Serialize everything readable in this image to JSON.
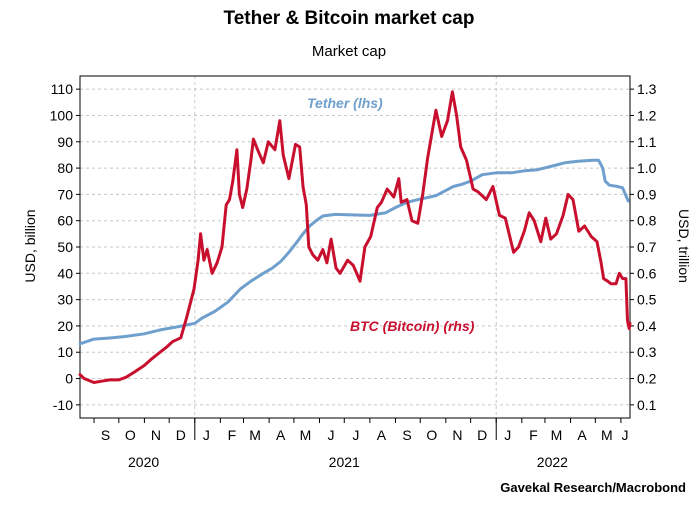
{
  "title": "Tether & Bitcoin market cap",
  "subtitle": "Market cap",
  "source": "Gavekal Research/Macrobond",
  "chart_data": {
    "type": "line",
    "title": "Tether & Bitcoin market cap",
    "subtitle": "Market cap",
    "ylabel_left": "USD, billion",
    "ylabel_right": "USD, trillion",
    "ylim_left": [
      -15,
      115
    ],
    "ylim_right": [
      0.05,
      1.35
    ],
    "yticks_left": [
      "-10",
      "0",
      "10",
      "20",
      "30",
      "40",
      "50",
      "60",
      "70",
      "80",
      "90",
      "100",
      "110"
    ],
    "yticks_right": [
      "0.1",
      "0.2",
      "0.3",
      "0.4",
      "0.5",
      "0.6",
      "0.7",
      "0.8",
      "0.9",
      "1.0",
      "1.1",
      "1.2",
      "1.3"
    ],
    "xlim": [
      "2020-08-15",
      "2022-06-12"
    ],
    "month_labels": [
      "S",
      "O",
      "N",
      "D",
      "J",
      "F",
      "M",
      "A",
      "M",
      "J",
      "J",
      "A",
      "S",
      "O",
      "N",
      "D",
      "J",
      "F",
      "M",
      "A",
      "M",
      "J"
    ],
    "month_dates": [
      "2020-09-15",
      "2020-10-15",
      "2020-11-15",
      "2020-12-15",
      "2021-01-15",
      "2021-02-15",
      "2021-03-15",
      "2021-04-15",
      "2021-05-15",
      "2021-06-15",
      "2021-07-15",
      "2021-08-15",
      "2021-09-15",
      "2021-10-15",
      "2021-11-15",
      "2021-12-15",
      "2022-01-15",
      "2022-02-15",
      "2022-03-15",
      "2022-04-15",
      "2022-05-15",
      "2022-06-06"
    ],
    "year_labels": [
      {
        "label": "2020",
        "date": "2020-10-31"
      },
      {
        "label": "2021",
        "date": "2021-07-01"
      },
      {
        "label": "2022",
        "date": "2022-03-10"
      }
    ],
    "year_dividers": [
      "2021-01-01",
      "2022-01-01"
    ],
    "grid": true,
    "series": [
      {
        "name": "Tether (lhs)",
        "axis": "left",
        "color": "#6f9fcd",
        "points": [
          [
            "2020-08-15",
            13.2
          ],
          [
            "2020-09-01",
            15.0
          ],
          [
            "2020-09-20",
            15.4
          ],
          [
            "2020-10-10",
            16.0
          ],
          [
            "2020-11-01",
            17.0
          ],
          [
            "2020-11-20",
            18.5
          ],
          [
            "2020-12-10",
            19.6
          ],
          [
            "2021-01-01",
            21.0
          ],
          [
            "2021-01-10",
            23.0
          ],
          [
            "2021-01-25",
            25.5
          ],
          [
            "2021-02-10",
            29.0
          ],
          [
            "2021-02-25",
            34.0
          ],
          [
            "2021-03-10",
            37.0
          ],
          [
            "2021-03-25",
            40.0
          ],
          [
            "2021-04-05",
            42.0
          ],
          [
            "2021-04-15",
            44.5
          ],
          [
            "2021-04-25",
            48.0
          ],
          [
            "2021-05-05",
            52.0
          ],
          [
            "2021-05-12",
            55.0
          ],
          [
            "2021-05-20",
            58.0
          ],
          [
            "2021-05-28",
            60.0
          ],
          [
            "2021-06-05",
            61.8
          ],
          [
            "2021-06-20",
            62.4
          ],
          [
            "2021-07-10",
            62.2
          ],
          [
            "2021-08-01",
            62.0
          ],
          [
            "2021-08-20",
            63.0
          ],
          [
            "2021-09-01",
            65.0
          ],
          [
            "2021-09-15",
            67.0
          ],
          [
            "2021-10-01",
            68.2
          ],
          [
            "2021-10-20",
            69.5
          ],
          [
            "2021-11-01",
            71.5
          ],
          [
            "2021-11-10",
            73.0
          ],
          [
            "2021-11-20",
            73.8
          ],
          [
            "2021-12-01",
            75.0
          ],
          [
            "2021-12-15",
            77.5
          ],
          [
            "2022-01-01",
            78.2
          ],
          [
            "2022-01-20",
            78.2
          ],
          [
            "2022-02-05",
            79.0
          ],
          [
            "2022-02-20",
            79.4
          ],
          [
            "2022-03-10",
            80.8
          ],
          [
            "2022-03-25",
            82.0
          ],
          [
            "2022-04-10",
            82.6
          ],
          [
            "2022-04-28",
            83.0
          ],
          [
            "2022-05-05",
            83.0
          ],
          [
            "2022-05-10",
            80.0
          ],
          [
            "2022-05-13",
            75.0
          ],
          [
            "2022-05-18",
            73.5
          ],
          [
            "2022-05-28",
            73.0
          ],
          [
            "2022-06-03",
            72.5
          ],
          [
            "2022-06-07",
            69.5
          ],
          [
            "2022-06-10",
            67.5
          ]
        ]
      },
      {
        "name": "BTC (Bitcoin) (rhs)",
        "axis": "right",
        "color": "#c8102e",
        "points": [
          [
            "2020-08-15",
            0.215
          ],
          [
            "2020-08-20",
            0.2
          ],
          [
            "2020-09-01",
            0.185
          ],
          [
            "2020-09-10",
            0.19
          ],
          [
            "2020-09-20",
            0.195
          ],
          [
            "2020-10-01",
            0.195
          ],
          [
            "2020-10-10",
            0.205
          ],
          [
            "2020-10-20",
            0.225
          ],
          [
            "2020-11-01",
            0.25
          ],
          [
            "2020-11-10",
            0.275
          ],
          [
            "2020-11-20",
            0.3
          ],
          [
            "2020-11-28",
            0.32
          ],
          [
            "2020-12-05",
            0.34
          ],
          [
            "2020-12-15",
            0.355
          ],
          [
            "2020-12-22",
            0.43
          ],
          [
            "2020-12-31",
            0.54
          ],
          [
            "2021-01-05",
            0.65
          ],
          [
            "2021-01-08",
            0.75
          ],
          [
            "2021-01-12",
            0.65
          ],
          [
            "2021-01-16",
            0.69
          ],
          [
            "2021-01-22",
            0.6
          ],
          [
            "2021-01-28",
            0.64
          ],
          [
            "2021-02-03",
            0.7
          ],
          [
            "2021-02-08",
            0.86
          ],
          [
            "2021-02-12",
            0.88
          ],
          [
            "2021-02-16",
            0.95
          ],
          [
            "2021-02-21",
            1.07
          ],
          [
            "2021-02-24",
            0.9
          ],
          [
            "2021-02-28",
            0.85
          ],
          [
            "2021-03-05",
            0.92
          ],
          [
            "2021-03-10",
            1.03
          ],
          [
            "2021-03-13",
            1.11
          ],
          [
            "2021-03-18",
            1.07
          ],
          [
            "2021-03-25",
            1.02
          ],
          [
            "2021-03-31",
            1.1
          ],
          [
            "2021-04-08",
            1.07
          ],
          [
            "2021-04-14",
            1.18
          ],
          [
            "2021-04-18",
            1.05
          ],
          [
            "2021-04-25",
            0.96
          ],
          [
            "2021-05-03",
            1.09
          ],
          [
            "2021-05-08",
            1.08
          ],
          [
            "2021-05-12",
            0.93
          ],
          [
            "2021-05-16",
            0.86
          ],
          [
            "2021-05-19",
            0.7
          ],
          [
            "2021-05-24",
            0.67
          ],
          [
            "2021-05-30",
            0.65
          ],
          [
            "2021-06-05",
            0.69
          ],
          [
            "2021-06-10",
            0.64
          ],
          [
            "2021-06-15",
            0.73
          ],
          [
            "2021-06-21",
            0.62
          ],
          [
            "2021-06-26",
            0.6
          ],
          [
            "2021-07-05",
            0.65
          ],
          [
            "2021-07-12",
            0.63
          ],
          [
            "2021-07-20",
            0.57
          ],
          [
            "2021-07-26",
            0.7
          ],
          [
            "2021-08-02",
            0.74
          ],
          [
            "2021-08-10",
            0.85
          ],
          [
            "2021-08-15",
            0.87
          ],
          [
            "2021-08-22",
            0.92
          ],
          [
            "2021-08-30",
            0.89
          ],
          [
            "2021-09-05",
            0.96
          ],
          [
            "2021-09-08",
            0.87
          ],
          [
            "2021-09-15",
            0.88
          ],
          [
            "2021-09-21",
            0.8
          ],
          [
            "2021-09-28",
            0.79
          ],
          [
            "2021-10-04",
            0.9
          ],
          [
            "2021-10-10",
            1.04
          ],
          [
            "2021-10-15",
            1.13
          ],
          [
            "2021-10-20",
            1.22
          ],
          [
            "2021-10-27",
            1.12
          ],
          [
            "2021-11-03",
            1.18
          ],
          [
            "2021-11-09",
            1.29
          ],
          [
            "2021-11-14",
            1.2
          ],
          [
            "2021-11-19",
            1.08
          ],
          [
            "2021-11-26",
            1.03
          ],
          [
            "2021-12-04",
            0.92
          ],
          [
            "2021-12-10",
            0.91
          ],
          [
            "2021-12-20",
            0.88
          ],
          [
            "2021-12-28",
            0.93
          ],
          [
            "2022-01-05",
            0.82
          ],
          [
            "2022-01-12",
            0.81
          ],
          [
            "2022-01-22",
            0.68
          ],
          [
            "2022-01-28",
            0.7
          ],
          [
            "2022-02-04",
            0.76
          ],
          [
            "2022-02-10",
            0.83
          ],
          [
            "2022-02-16",
            0.8
          ],
          [
            "2022-02-24",
            0.72
          ],
          [
            "2022-03-02",
            0.81
          ],
          [
            "2022-03-08",
            0.73
          ],
          [
            "2022-03-15",
            0.75
          ],
          [
            "2022-03-23",
            0.82
          ],
          [
            "2022-03-29",
            0.9
          ],
          [
            "2022-04-04",
            0.88
          ],
          [
            "2022-04-11",
            0.76
          ],
          [
            "2022-04-18",
            0.78
          ],
          [
            "2022-04-26",
            0.74
          ],
          [
            "2022-05-03",
            0.72
          ],
          [
            "2022-05-08",
            0.64
          ],
          [
            "2022-05-11",
            0.58
          ],
          [
            "2022-05-16",
            0.57
          ],
          [
            "2022-05-20",
            0.56
          ],
          [
            "2022-05-26",
            0.56
          ],
          [
            "2022-05-30",
            0.6
          ],
          [
            "2022-06-03",
            0.58
          ],
          [
            "2022-06-07",
            0.58
          ],
          [
            "2022-06-09",
            0.42
          ],
          [
            "2022-06-11",
            0.39
          ],
          [
            "2022-06-12",
            0.41
          ]
        ]
      }
    ],
    "annotations": [
      {
        "text": "Tether (lhs)",
        "series": 0
      },
      {
        "text": "BTC (Bitcoin) (rhs)",
        "series": 1
      }
    ]
  }
}
